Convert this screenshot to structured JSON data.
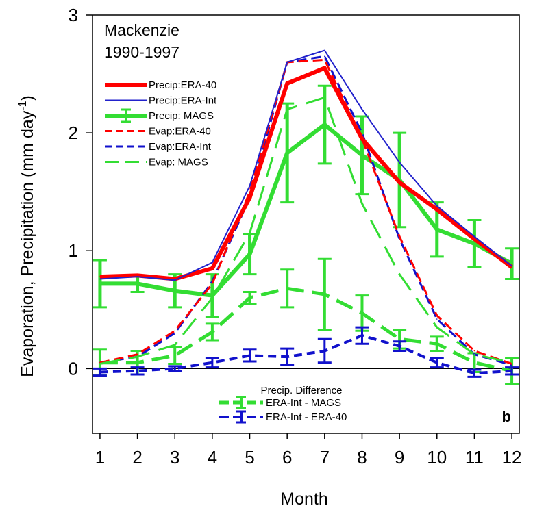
{
  "chart_data": {
    "type": "line",
    "title": "Mackenzie",
    "subtitle": "1990-1997",
    "panel_label": "b",
    "xlabel": "Month",
    "ylabel_main": "Evaporation, Precipitation (mm day",
    "ylabel_sup": "-1",
    "ylabel_close": ")",
    "x": [
      1,
      2,
      3,
      4,
      5,
      6,
      7,
      8,
      9,
      10,
      11,
      12
    ],
    "xlim": [
      0.8,
      12.2
    ],
    "ylim": [
      -0.55,
      3.0
    ],
    "x_ticks": [
      1,
      2,
      3,
      4,
      5,
      6,
      7,
      8,
      9,
      10,
      11,
      12
    ],
    "y_ticks": [
      0,
      1,
      2,
      3
    ],
    "zero_line": true,
    "grid": false,
    "legend_main_placement": "top-left",
    "legend_diff_title": "Precip. Difference",
    "legend_diff_placement": "bottom-center",
    "series": [
      {
        "name": "Precip:ERA-40",
        "style": "solid",
        "color": "#ff0000",
        "width": 6,
        "values": [
          0.78,
          0.79,
          0.76,
          0.85,
          1.45,
          2.42,
          2.55,
          1.95,
          1.58,
          1.35,
          1.1,
          0.86
        ]
      },
      {
        "name": "Precip:ERA-Int",
        "style": "solid",
        "color": "#2222cc",
        "width": 2,
        "values": [
          0.76,
          0.78,
          0.75,
          0.9,
          1.55,
          2.6,
          2.7,
          2.2,
          1.75,
          1.38,
          1.12,
          0.87
        ]
      },
      {
        "name": "Precip: MAGS",
        "style": "errorbar",
        "color": "#33dd33",
        "width": 6,
        "values": [
          0.72,
          0.72,
          0.66,
          0.62,
          0.97,
          1.83,
          2.07,
          1.81,
          1.6,
          1.18,
          1.06,
          0.89
        ],
        "errors": [
          0.2,
          0.07,
          0.14,
          0.18,
          0.17,
          0.42,
          0.33,
          0.33,
          0.4,
          0.23,
          0.2,
          0.13
        ]
      },
      {
        "name": "Evap:ERA-40",
        "style": "dashed",
        "color": "#ff0000",
        "width": 3,
        "values": [
          0.05,
          0.12,
          0.32,
          0.72,
          1.5,
          2.6,
          2.62,
          1.95,
          1.12,
          0.45,
          0.15,
          0.04
        ]
      },
      {
        "name": "Evap:ERA-Int",
        "style": "dashed",
        "color": "#1111cc",
        "width": 3,
        "values": [
          0.05,
          0.1,
          0.3,
          0.74,
          1.45,
          2.6,
          2.65,
          2.0,
          1.1,
          0.42,
          0.12,
          0.03
        ]
      },
      {
        "name": "Evap: MAGS",
        "style": "longdash",
        "color": "#33dd33",
        "width": 3,
        "values": [
          0.04,
          0.1,
          0.2,
          0.6,
          1.15,
          2.2,
          2.3,
          1.4,
          0.8,
          0.35,
          0.12,
          0.05
        ]
      }
    ],
    "difference_series": [
      {
        "name": "ERA-Int - MAGS",
        "style": "longdash-errorbar",
        "color": "#33dd33",
        "width": 5,
        "values": [
          0.05,
          0.05,
          0.11,
          0.31,
          0.6,
          0.68,
          0.63,
          0.47,
          0.25,
          0.21,
          0.05,
          -0.02
        ],
        "errors": [
          0.11,
          0.1,
          0.07,
          0.07,
          0.05,
          0.16,
          0.3,
          0.15,
          0.08,
          0.06,
          0.08,
          0.11
        ]
      },
      {
        "name": "ERA-Int - ERA-40",
        "style": "dashed-errorbar",
        "color": "#1111cc",
        "width": 4,
        "values": [
          -0.03,
          -0.02,
          0.0,
          0.05,
          0.11,
          0.1,
          0.15,
          0.28,
          0.19,
          0.05,
          -0.04,
          -0.02
        ],
        "errors": [
          0.03,
          0.03,
          0.02,
          0.04,
          0.05,
          0.07,
          0.1,
          0.07,
          0.04,
          0.04,
          0.03,
          0.03
        ]
      }
    ]
  }
}
